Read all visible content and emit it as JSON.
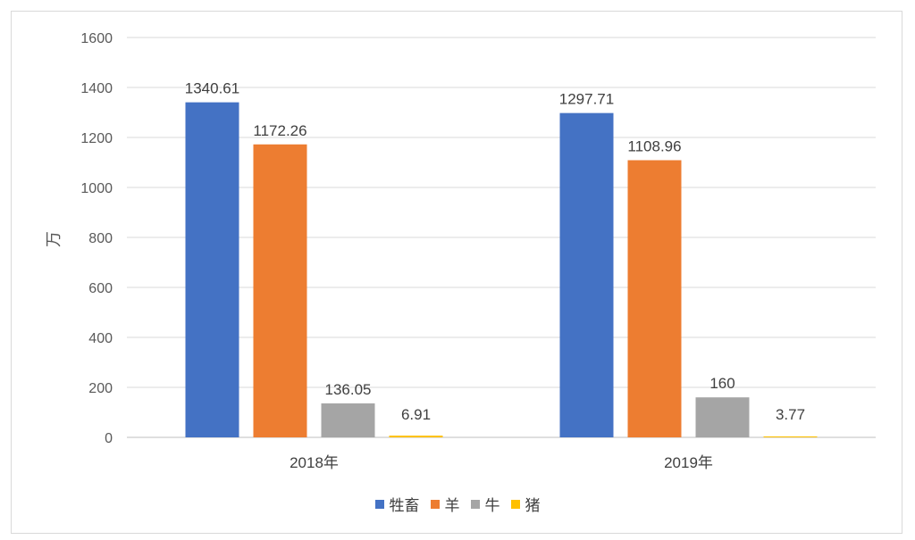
{
  "chart_data": {
    "type": "bar",
    "categories": [
      "2018年",
      "2019年"
    ],
    "series": [
      {
        "name": "牲畜",
        "color": "#4472C4",
        "values": [
          1340.61,
          1297.71
        ],
        "labels": [
          "1340.61",
          "1297.71"
        ]
      },
      {
        "name": "羊",
        "color": "#ED7D31",
        "values": [
          1172.26,
          1108.96
        ],
        "labels": [
          "1172.26",
          "1108.96"
        ]
      },
      {
        "name": "牛",
        "color": "#A5A5A5",
        "values": [
          136.05,
          160
        ],
        "labels": [
          "136.05",
          "160"
        ]
      },
      {
        "name": "猪",
        "color": "#FFC000",
        "values": [
          6.91,
          3.77
        ],
        "labels": [
          "6.91",
          "3.77"
        ]
      }
    ],
    "ylabel": "万",
    "ylim": [
      0,
      1600
    ],
    "yticks": [
      "0",
      "200",
      "400",
      "600",
      "800",
      "1000",
      "1200",
      "1400",
      "1600"
    ],
    "grid": true,
    "legend_position": "bottom"
  }
}
